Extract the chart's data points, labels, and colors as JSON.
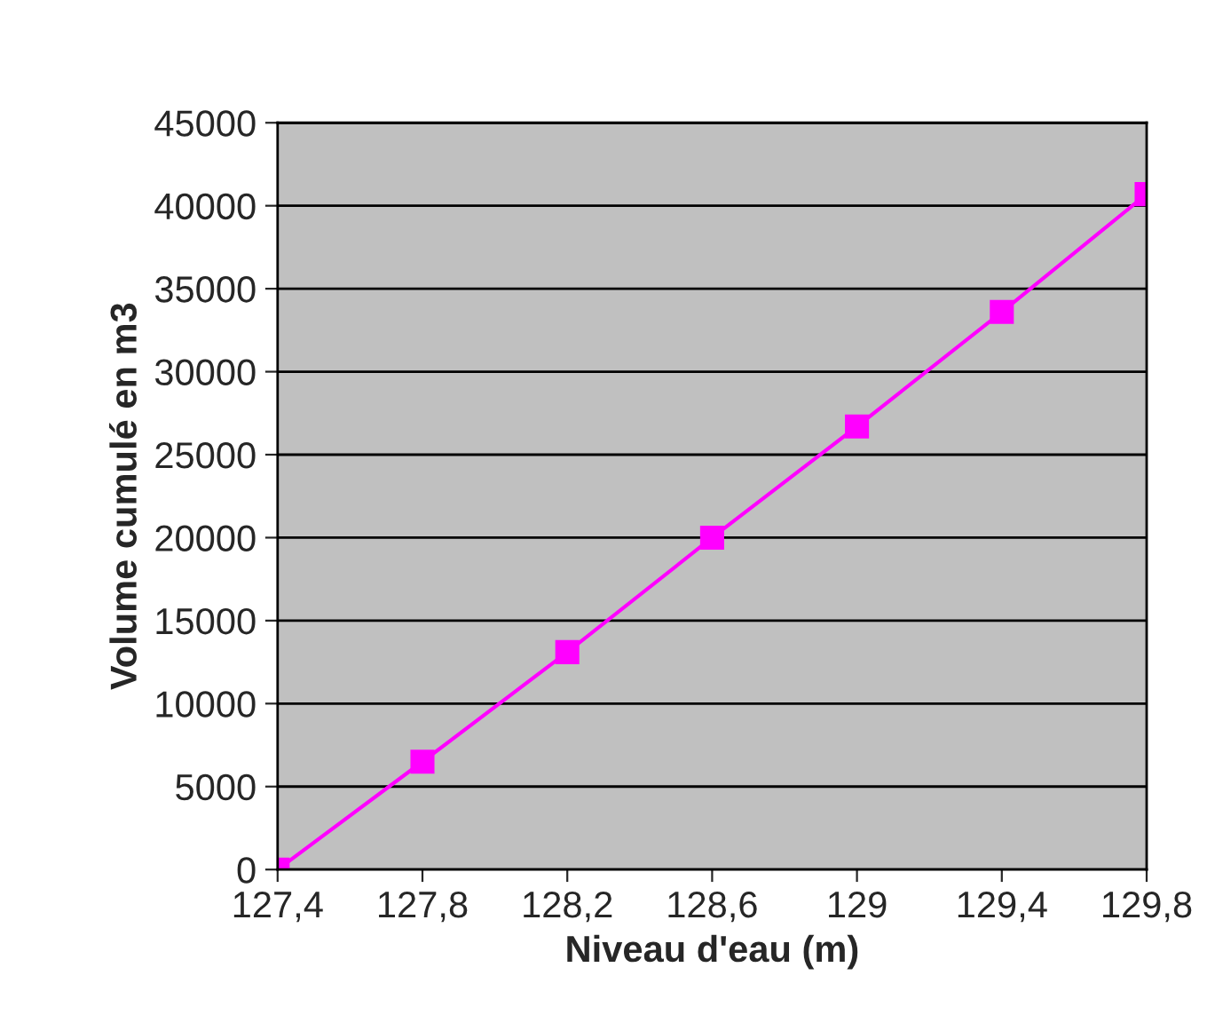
{
  "chart_data": {
    "type": "line",
    "xlabel": "Niveau d'eau (m)",
    "ylabel": "Volume cumulé en m3",
    "x": [
      127.4,
      127.8,
      128.2,
      128.6,
      129.0,
      129.4,
      129.8
    ],
    "series": [
      {
        "color": "#ff00ff",
        "values": [
          0,
          6500,
          13100,
          20000,
          26700,
          33600,
          40700
        ]
      }
    ],
    "xlim": [
      127.4,
      129.8
    ],
    "xticks": [
      {
        "value": 127.4,
        "label": "127,4"
      },
      {
        "value": 127.8,
        "label": "127,8"
      },
      {
        "value": 128.2,
        "label": "128,2"
      },
      {
        "value": 128.6,
        "label": "128,6"
      },
      {
        "value": 129.0,
        "label": "129"
      },
      {
        "value": 129.4,
        "label": "129,4"
      },
      {
        "value": 129.8,
        "label": "129,8"
      }
    ],
    "ylim": [
      0,
      45000
    ],
    "yticks": [
      0,
      5000,
      10000,
      15000,
      20000,
      25000,
      30000,
      35000,
      40000,
      45000
    ],
    "grid": "y",
    "marker": "square",
    "line_style": "solid",
    "legend": false
  }
}
